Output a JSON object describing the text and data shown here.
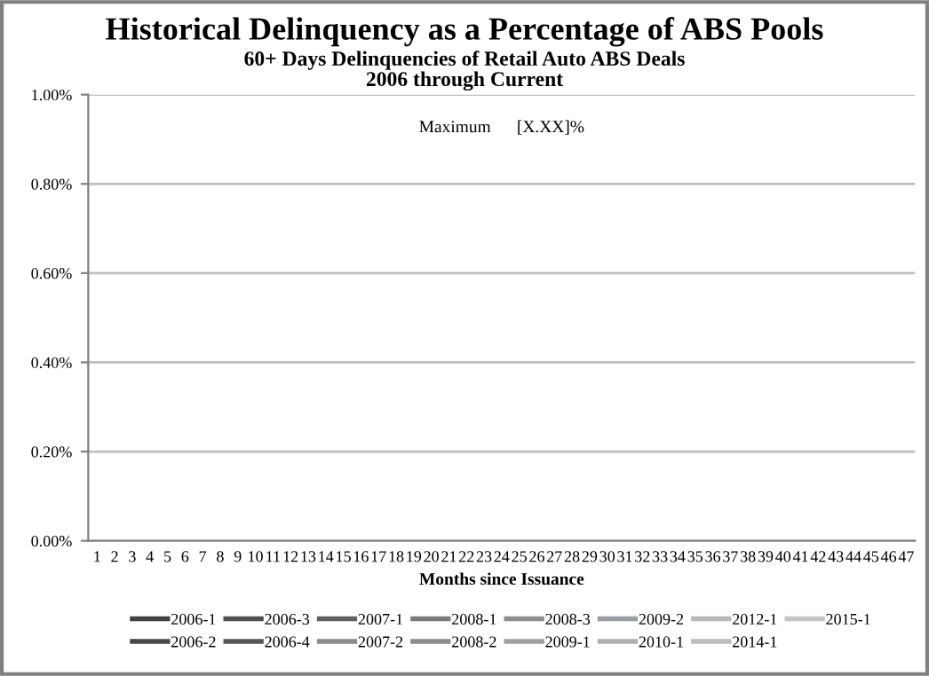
{
  "chart_data": {
    "type": "line",
    "title": "Historical Delinquency as a Percentage of ABS Pools",
    "subtitle": "60+ Days Delinquencies of Retail Auto ABS Deals\n2006 through Current",
    "xlabel": "Months since Issuance",
    "categories": [
      "1",
      "2",
      "3",
      "4",
      "5",
      "6",
      "7",
      "8",
      "9",
      "10",
      "11",
      "12",
      "13",
      "14",
      "15",
      "16",
      "17",
      "18",
      "19",
      "20",
      "21",
      "22",
      "23",
      "24",
      "25",
      "26",
      "27",
      "28",
      "29",
      "30",
      "31",
      "32",
      "33",
      "34",
      "35",
      "36",
      "37",
      "38",
      "39",
      "40",
      "41",
      "42",
      "43",
      "44",
      "45",
      "46",
      "47"
    ],
    "ylim": [
      0,
      1
    ],
    "yticks": [
      {
        "value": 0,
        "label": "0.00%"
      },
      {
        "value": 0.2,
        "label": "0.20%"
      },
      {
        "value": 0.4,
        "label": "0.40%"
      },
      {
        "value": 0.6,
        "label": "0.60%"
      },
      {
        "value": 0.8,
        "label": "0.80%"
      },
      {
        "value": 1,
        "label": "1.00%"
      }
    ],
    "grid": "y",
    "legend": "bottom",
    "annotations": [
      "Maximum      [X.XX]%"
    ],
    "series": [
      {
        "name": "2006-1",
        "color": "#404040",
        "values": [
          null,
          null,
          null,
          null,
          null,
          null,
          null,
          null,
          null,
          null,
          null,
          null,
          null,
          null,
          null,
          null,
          null,
          null,
          null,
          null,
          null,
          null,
          null,
          null,
          null,
          null,
          null,
          null,
          null,
          null,
          null,
          null,
          null,
          null,
          null,
          null,
          null,
          null,
          null,
          null,
          null,
          null,
          null,
          null,
          null,
          null,
          null
        ]
      },
      {
        "name": "2006-2",
        "color": "#484848",
        "values": [
          null,
          null,
          null,
          null,
          null,
          null,
          null,
          null,
          null,
          null,
          null,
          null,
          null,
          null,
          null,
          null,
          null,
          null,
          null,
          null,
          null,
          null,
          null,
          null,
          null,
          null,
          null,
          null,
          null,
          null,
          null,
          null,
          null,
          null,
          null,
          null,
          null,
          null,
          null,
          null,
          null,
          null,
          null,
          null,
          null,
          null,
          null
        ]
      },
      {
        "name": "2006-3",
        "color": "#4f4f4f",
        "values": [
          null,
          null,
          null,
          null,
          null,
          null,
          null,
          null,
          null,
          null,
          null,
          null,
          null,
          null,
          null,
          null,
          null,
          null,
          null,
          null,
          null,
          null,
          null,
          null,
          null,
          null,
          null,
          null,
          null,
          null,
          null,
          null,
          null,
          null,
          null,
          null,
          null,
          null,
          null,
          null,
          null,
          null,
          null,
          null,
          null,
          null,
          null
        ]
      },
      {
        "name": "2006-4",
        "color": "#575757",
        "values": [
          null,
          null,
          null,
          null,
          null,
          null,
          null,
          null,
          null,
          null,
          null,
          null,
          null,
          null,
          null,
          null,
          null,
          null,
          null,
          null,
          null,
          null,
          null,
          null,
          null,
          null,
          null,
          null,
          null,
          null,
          null,
          null,
          null,
          null,
          null,
          null,
          null,
          null,
          null,
          null,
          null,
          null,
          null,
          null,
          null,
          null,
          null
        ]
      },
      {
        "name": "2007-1",
        "color": "#606060",
        "values": [
          null,
          null,
          null,
          null,
          null,
          null,
          null,
          null,
          null,
          null,
          null,
          null,
          null,
          null,
          null,
          null,
          null,
          null,
          null,
          null,
          null,
          null,
          null,
          null,
          null,
          null,
          null,
          null,
          null,
          null,
          null,
          null,
          null,
          null,
          null,
          null,
          null,
          null,
          null,
          null,
          null,
          null,
          null,
          null,
          null,
          null,
          null
        ]
      },
      {
        "name": "2007-2",
        "color": "#8a8a8a",
        "values": [
          null,
          null,
          null,
          null,
          null,
          null,
          null,
          null,
          null,
          null,
          null,
          null,
          null,
          null,
          null,
          null,
          null,
          null,
          null,
          null,
          null,
          null,
          null,
          null,
          null,
          null,
          null,
          null,
          null,
          null,
          null,
          null,
          null,
          null,
          null,
          null,
          null,
          null,
          null,
          null,
          null,
          null,
          null,
          null,
          null,
          null,
          null
        ]
      },
      {
        "name": "2008-1",
        "color": "#7a7a7a",
        "values": [
          null,
          null,
          null,
          null,
          null,
          null,
          null,
          null,
          null,
          null,
          null,
          null,
          null,
          null,
          null,
          null,
          null,
          null,
          null,
          null,
          null,
          null,
          null,
          null,
          null,
          null,
          null,
          null,
          null,
          null,
          null,
          null,
          null,
          null,
          null,
          null,
          null,
          null,
          null,
          null,
          null,
          null,
          null,
          null,
          null,
          null,
          null
        ]
      },
      {
        "name": "2008-2",
        "color": "#8c8c8c",
        "values": [
          null,
          null,
          null,
          null,
          null,
          null,
          null,
          null,
          null,
          null,
          null,
          null,
          null,
          null,
          null,
          null,
          null,
          null,
          null,
          null,
          null,
          null,
          null,
          null,
          null,
          null,
          null,
          null,
          null,
          null,
          null,
          null,
          null,
          null,
          null,
          null,
          null,
          null,
          null,
          null,
          null,
          null,
          null,
          null,
          null,
          null,
          null
        ]
      },
      {
        "name": "2008-3",
        "color": "#8f8f8f",
        "values": [
          null,
          null,
          null,
          null,
          null,
          null,
          null,
          null,
          null,
          null,
          null,
          null,
          null,
          null,
          null,
          null,
          null,
          null,
          null,
          null,
          null,
          null,
          null,
          null,
          null,
          null,
          null,
          null,
          null,
          null,
          null,
          null,
          null,
          null,
          null,
          null,
          null,
          null,
          null,
          null,
          null,
          null,
          null,
          null,
          null,
          null,
          null
        ]
      },
      {
        "name": "2009-1",
        "color": "#a0a0a0",
        "values": [
          null,
          null,
          null,
          null,
          null,
          null,
          null,
          null,
          null,
          null,
          null,
          null,
          null,
          null,
          null,
          null,
          null,
          null,
          null,
          null,
          null,
          null,
          null,
          null,
          null,
          null,
          null,
          null,
          null,
          null,
          null,
          null,
          null,
          null,
          null,
          null,
          null,
          null,
          null,
          null,
          null,
          null,
          null,
          null,
          null,
          null,
          null
        ]
      },
      {
        "name": "2009-2",
        "color": "#9a9aa4",
        "values": [
          null,
          null,
          null,
          null,
          null,
          null,
          null,
          null,
          null,
          null,
          null,
          null,
          null,
          null,
          null,
          null,
          null,
          null,
          null,
          null,
          null,
          null,
          null,
          null,
          null,
          null,
          null,
          null,
          null,
          null,
          null,
          null,
          null,
          null,
          null,
          null,
          null,
          null,
          null,
          null,
          null,
          null,
          null,
          null,
          null,
          null,
          null
        ]
      },
      {
        "name": "2010-1",
        "color": "#b0b0b0",
        "values": [
          null,
          null,
          null,
          null,
          null,
          null,
          null,
          null,
          null,
          null,
          null,
          null,
          null,
          null,
          null,
          null,
          null,
          null,
          null,
          null,
          null,
          null,
          null,
          null,
          null,
          null,
          null,
          null,
          null,
          null,
          null,
          null,
          null,
          null,
          null,
          null,
          null,
          null,
          null,
          null,
          null,
          null,
          null,
          null,
          null,
          null,
          null
        ]
      },
      {
        "name": "2012-1",
        "color": "#b8b8b8",
        "values": [
          null,
          null,
          null,
          null,
          null,
          null,
          null,
          null,
          null,
          null,
          null,
          null,
          null,
          null,
          null,
          null,
          null,
          null,
          null,
          null,
          null,
          null,
          null,
          null,
          null,
          null,
          null,
          null,
          null,
          null,
          null,
          null,
          null,
          null,
          null,
          null,
          null,
          null,
          null,
          null,
          null,
          null,
          null,
          null,
          null,
          null,
          null
        ]
      },
      {
        "name": "2014-1",
        "color": "#bdbdbd",
        "values": [
          null,
          null,
          null,
          null,
          null,
          null,
          null,
          null,
          null,
          null,
          null,
          null,
          null,
          null,
          null,
          null,
          null,
          null,
          null,
          null,
          null,
          null,
          null,
          null,
          null,
          null,
          null,
          null,
          null,
          null,
          null,
          null,
          null,
          null,
          null,
          null,
          null,
          null,
          null,
          null,
          null,
          null,
          null,
          null,
          null,
          null,
          null
        ]
      },
      {
        "name": "2015-1",
        "color": "#c4c4c4",
        "values": [
          null,
          null,
          null,
          null,
          null,
          null,
          null,
          null,
          null,
          null,
          null,
          null,
          null,
          null,
          null,
          null,
          null,
          null,
          null,
          null,
          null,
          null,
          null,
          null,
          null,
          null,
          null,
          null,
          null,
          null,
          null,
          null,
          null,
          null,
          null,
          null,
          null,
          null,
          null,
          null,
          null,
          null,
          null,
          null,
          null,
          null,
          null
        ]
      }
    ]
  }
}
